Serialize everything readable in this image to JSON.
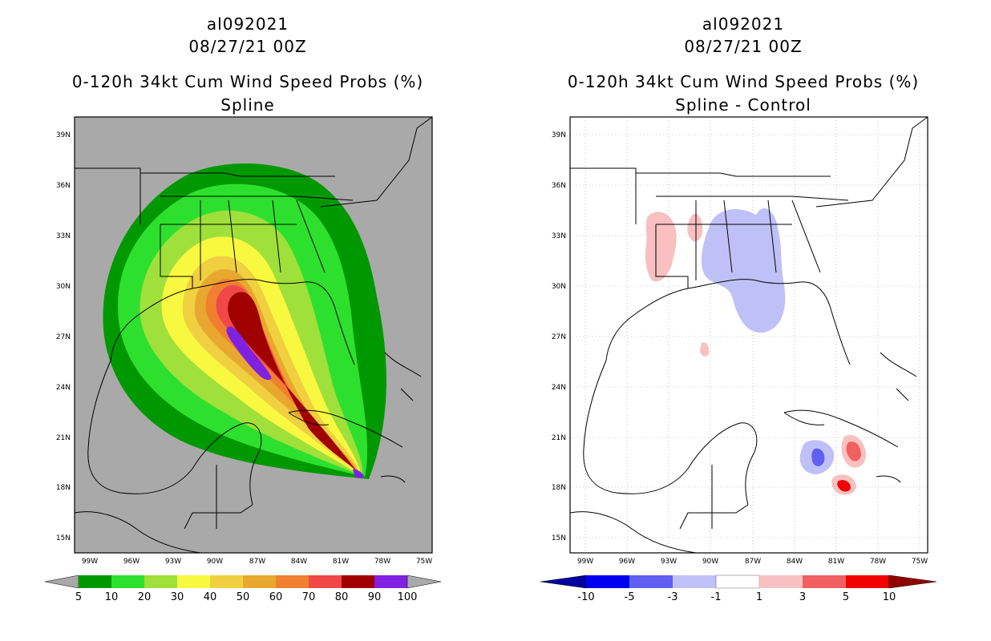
{
  "left": {
    "storm_id": "al092021",
    "datetime": "08/27/21 00Z",
    "product": "0-120h 34kt Cum Wind Speed Probs (%)",
    "subtitle": "Spline",
    "colorbar": {
      "levels": [
        "5",
        "10",
        "20",
        "30",
        "40",
        "50",
        "60",
        "70",
        "80",
        "90",
        "100"
      ],
      "colors": [
        "#009800",
        "#2ee02e",
        "#a0e03a",
        "#f8f840",
        "#f0d040",
        "#e8a830",
        "#f08030",
        "#f04848",
        "#a00000",
        "#8020e0"
      ],
      "under_color": "#a9a9a9",
      "over_color": "#a9a9a9"
    },
    "background_color": "#a9a9a9"
  },
  "right": {
    "storm_id": "al092021",
    "datetime": "08/27/21 00Z",
    "product": "0-120h 34kt Cum Wind Speed Probs (%)",
    "subtitle": "Spline - Control",
    "colorbar": {
      "levels": [
        "-10",
        "-5",
        "-3",
        "-1",
        "1",
        "3",
        "5",
        "10"
      ],
      "colors": [
        "#0000f0",
        "#6060f0",
        "#c0c0f8",
        "#ffffff",
        "#f8c0c0",
        "#f06060",
        "#f00000"
      ],
      "under_color": "#0000a0",
      "over_color": "#900000"
    },
    "background_color": "#ffffff"
  },
  "axes": {
    "lat_labels": [
      "39N",
      "36N",
      "33N",
      "30N",
      "27N",
      "24N",
      "21N",
      "18N",
      "15N"
    ],
    "lon_labels": [
      "99W",
      "96W",
      "93W",
      "90W",
      "87W",
      "84W",
      "81W",
      "78W",
      "75W"
    ]
  }
}
